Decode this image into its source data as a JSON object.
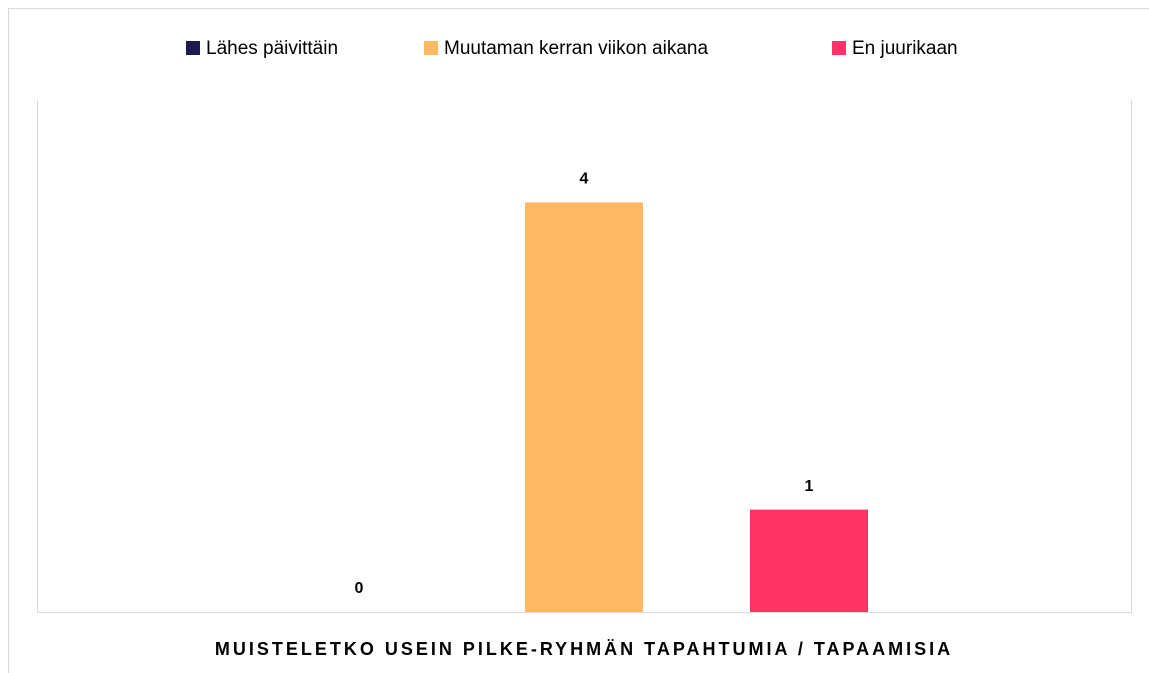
{
  "chart_data": {
    "type": "bar",
    "categories": [
      "MUISTELETKO USEIN PILKE-RYHMÄN TAPAHTUMIA / TAPAAMISIA"
    ],
    "series": [
      {
        "name": "Lähes päivittäin",
        "color": "#1f1a4d",
        "values": [
          0
        ]
      },
      {
        "name": "Muutaman kerran viikon aikana",
        "color": "#fdb863",
        "values": [
          4
        ]
      },
      {
        "name": "En juurikaan",
        "color": "#ff3366",
        "values": [
          1
        ]
      }
    ],
    "ylim": [
      0,
      5
    ],
    "legend": "top"
  }
}
